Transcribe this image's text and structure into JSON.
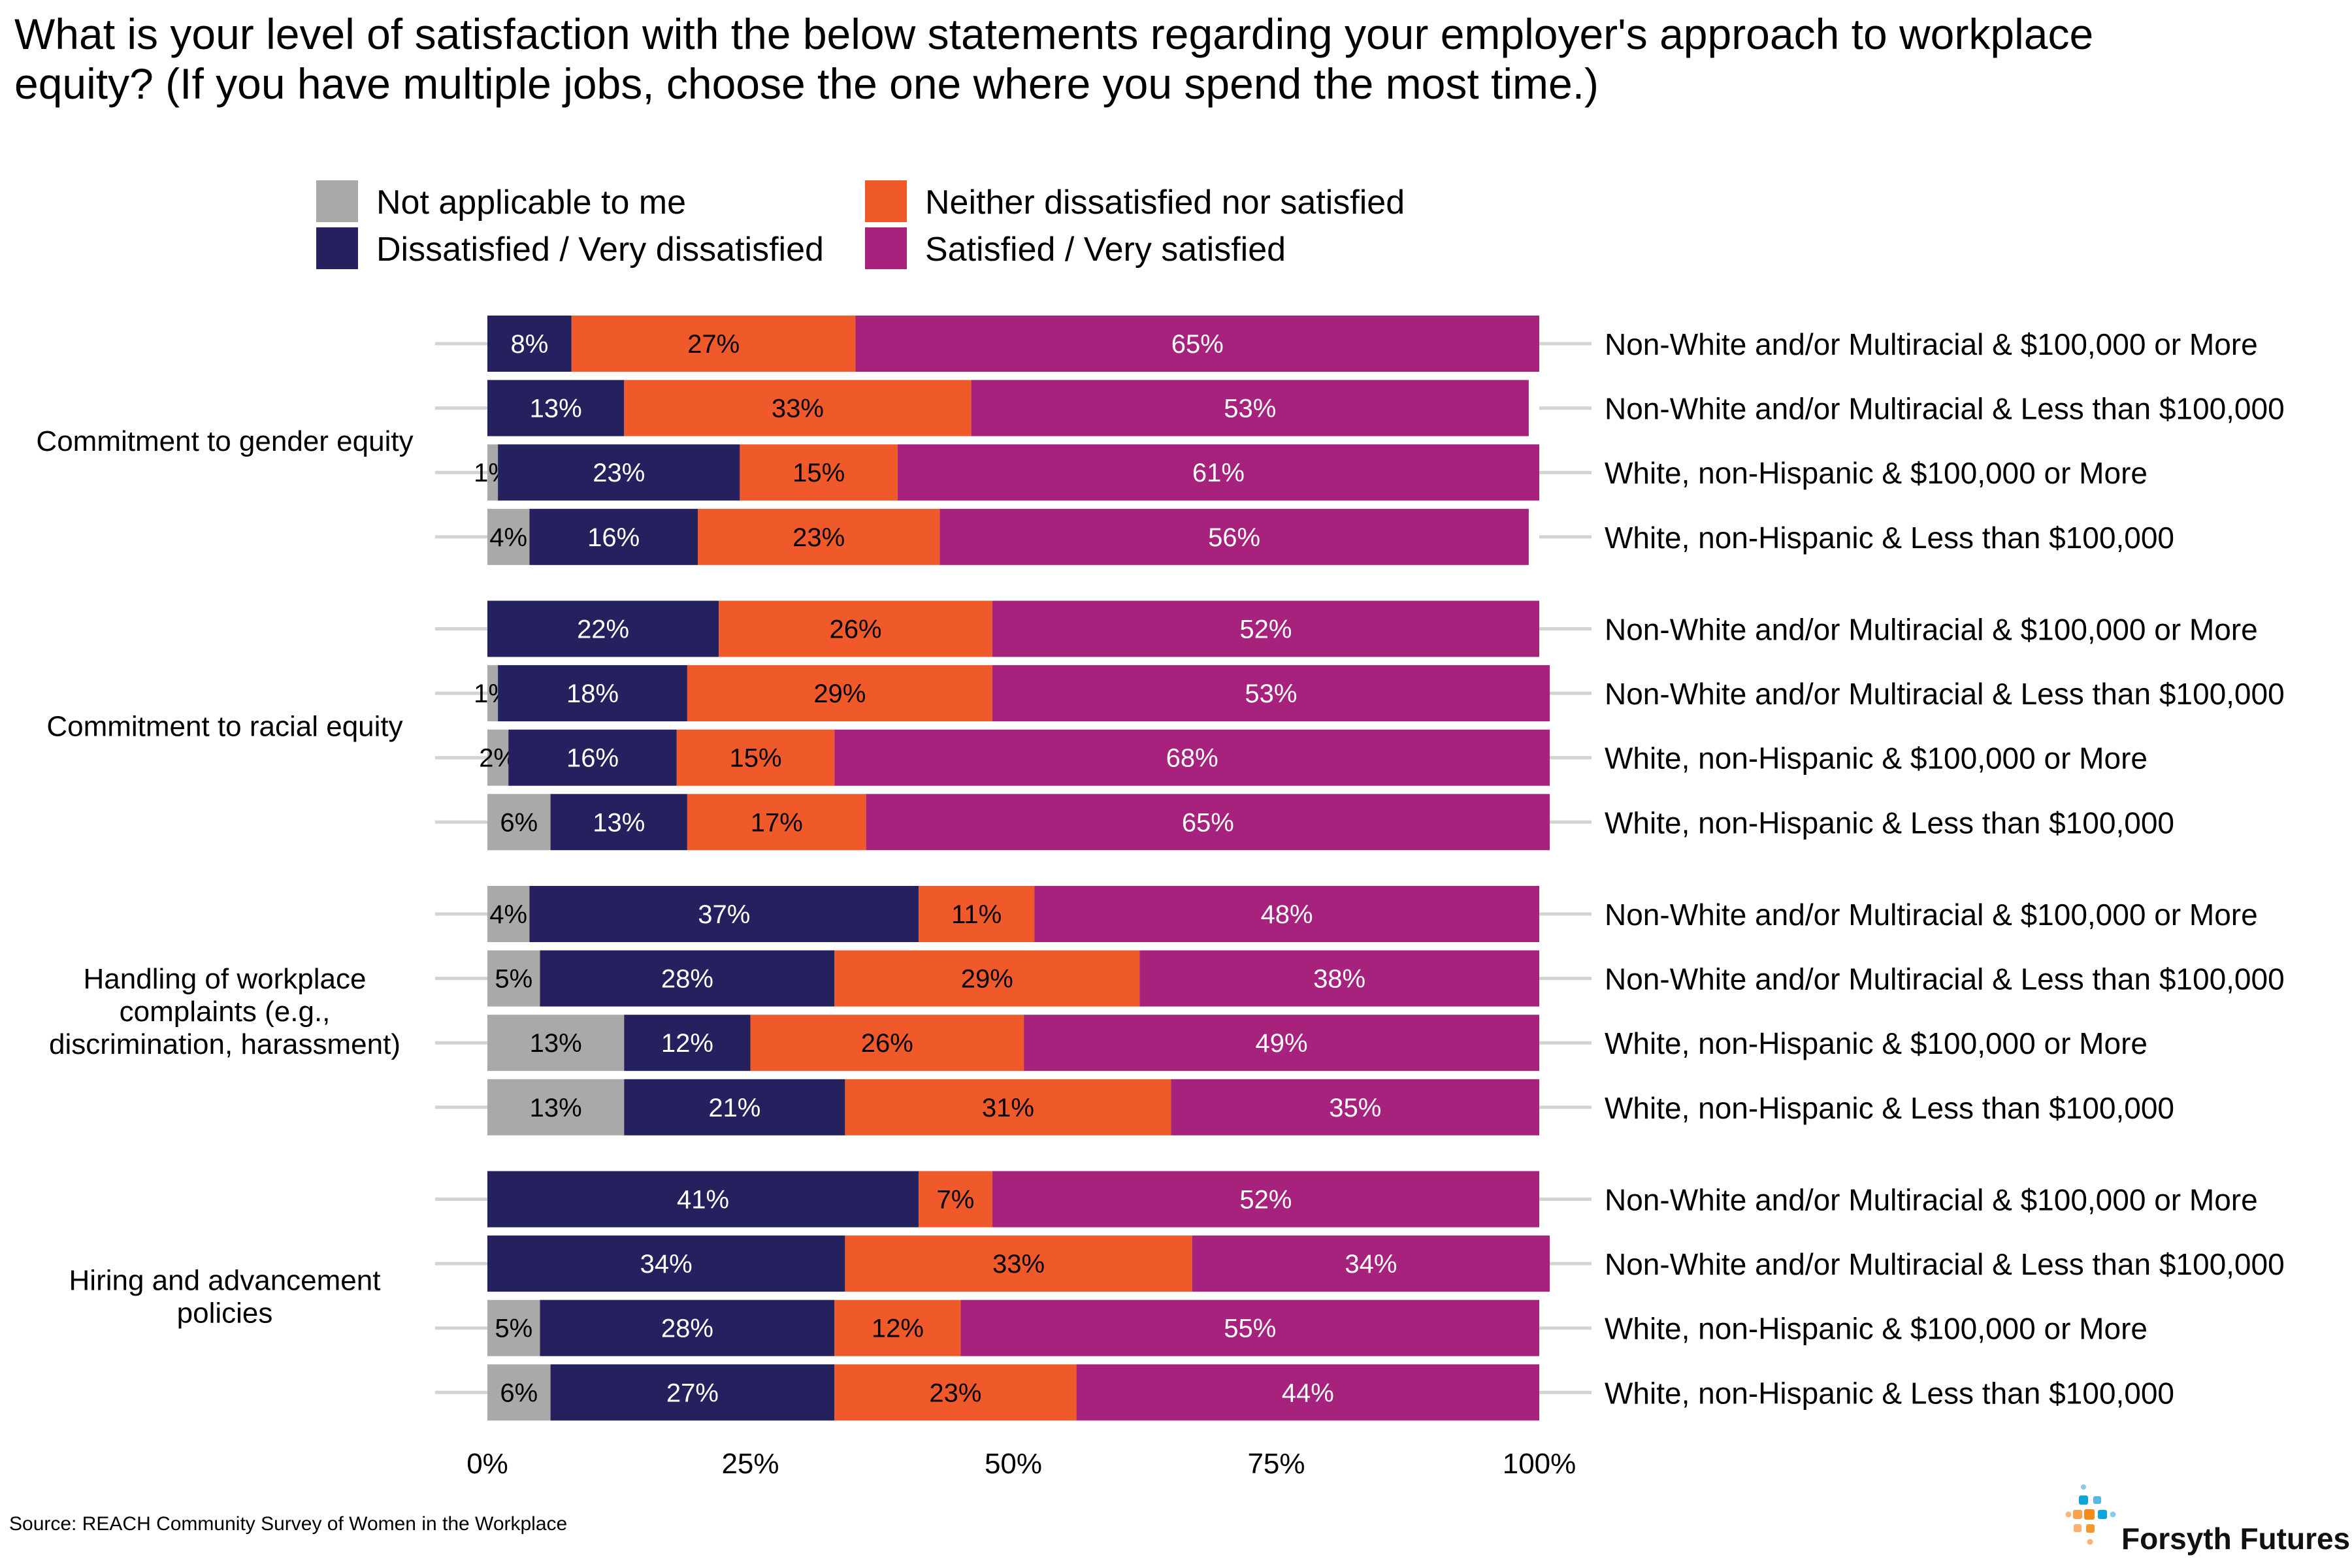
{
  "chart_data": {
    "type": "bar",
    "orientation": "horizontal",
    "stacked": true,
    "title": "What is your level of satisfaction with the below statements regarding your employer's approach to workplace equity? (If you have multiple jobs, choose the one where you spend the most time.)",
    "xlabel": "",
    "ylabel": "",
    "xlim": [
      0,
      100
    ],
    "x_ticks": [
      "0%",
      "25%",
      "50%",
      "75%",
      "100%"
    ],
    "x_tick_values": [
      0,
      25,
      50,
      75,
      100
    ],
    "grid": false,
    "legend_position": "top",
    "legend": [
      {
        "name": "Not applicable to me",
        "color": "#A9A9A9"
      },
      {
        "name": "Neither dissatisfied nor satisfied",
        "color": "#F05A2B"
      },
      {
        "name": "Dissatisfied / Very dissatisfied",
        "color": "#25215E"
      },
      {
        "name": "Satisfied / Very satisfied",
        "color": "#A6227C"
      }
    ],
    "stack_order": [
      "Not applicable to me",
      "Dissatisfied / Very dissatisfied",
      "Neither dissatisfied nor satisfied",
      "Satisfied / Very satisfied"
    ],
    "segment_colors": [
      "#A9A9A9",
      "#25215E",
      "#F05A2B",
      "#A6227C"
    ],
    "label_colors": [
      "#000000",
      "#FFFFFF",
      "#000000",
      "#FFFFFF"
    ],
    "groups": [
      {
        "name": "Commitment to gender equity",
        "rows": [
          {
            "label": "Non-White and/or Multiracial & $100,000 or More",
            "values": [
              0,
              8,
              27,
              65
            ]
          },
          {
            "label": "Non-White and/or Multiracial & Less than $100,000",
            "values": [
              0,
              13,
              33,
              53
            ]
          },
          {
            "label": "White, non-Hispanic & $100,000 or More",
            "values": [
              1,
              23,
              15,
              61
            ]
          },
          {
            "label": "White, non-Hispanic & Less than $100,000",
            "values": [
              4,
              16,
              23,
              56
            ]
          }
        ]
      },
      {
        "name": "Commitment to racial equity",
        "rows": [
          {
            "label": "Non-White and/or Multiracial & $100,000 or More",
            "values": [
              0,
              22,
              26,
              52
            ]
          },
          {
            "label": "Non-White and/or Multiracial & Less than $100,000",
            "values": [
              1,
              18,
              29,
              53
            ]
          },
          {
            "label": "White, non-Hispanic & $100,000 or More",
            "values": [
              2,
              16,
              15,
              68
            ]
          },
          {
            "label": "White, non-Hispanic & Less than $100,000",
            "values": [
              6,
              13,
              17,
              65
            ]
          }
        ]
      },
      {
        "name": "Handling of workplace complaints (e.g., discrimination, harassment)",
        "name_lines": [
          "Handling of workplace",
          "complaints (e.g.,",
          "discrimination, harassment)"
        ],
        "rows": [
          {
            "label": "Non-White and/or Multiracial & $100,000 or More",
            "values": [
              4,
              37,
              11,
              48
            ]
          },
          {
            "label": "Non-White and/or Multiracial & Less than $100,000",
            "values": [
              5,
              28,
              29,
              38
            ]
          },
          {
            "label": "White, non-Hispanic & $100,000 or More",
            "values": [
              13,
              12,
              26,
              49
            ]
          },
          {
            "label": "White, non-Hispanic & Less than $100,000",
            "values": [
              13,
              21,
              31,
              35
            ]
          }
        ]
      },
      {
        "name": "Hiring and advancement policies",
        "name_lines": [
          "Hiring and advancement",
          "policies"
        ],
        "rows": [
          {
            "label": "Non-White and/or Multiracial & $100,000 or More",
            "values": [
              0,
              41,
              7,
              52
            ]
          },
          {
            "label": "Non-White and/or Multiracial & Less than $100,000",
            "values": [
              0,
              34,
              33,
              34
            ]
          },
          {
            "label": "White, non-Hispanic & $100,000 or More",
            "values": [
              5,
              28,
              12,
              55
            ]
          },
          {
            "label": "White, non-Hispanic & Less than $100,000",
            "values": [
              6,
              27,
              23,
              44
            ]
          }
        ]
      }
    ]
  },
  "source": "Source: REACH Community Survey of Women in the Workplace",
  "logo": {
    "text": "Forsyth Futures"
  }
}
